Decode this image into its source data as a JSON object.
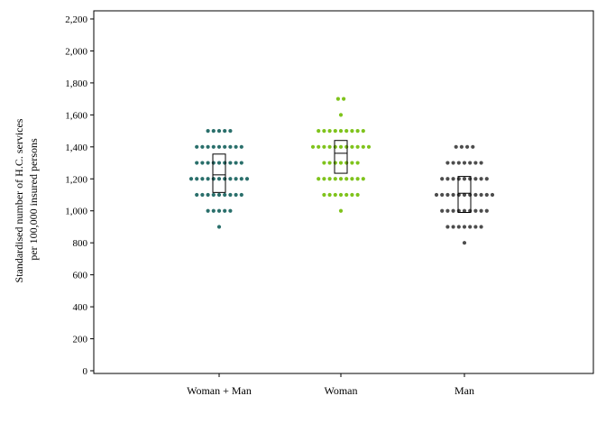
{
  "chart_data": {
    "type": "scatter",
    "subtype": "dot-plot with box",
    "ylabel_lines": [
      "Standardised number of H.C. services",
      "per 100,000 insured persons"
    ],
    "xlabel": "",
    "ylim": [
      0,
      2200
    ],
    "yticks": [
      0,
      200,
      400,
      600,
      800,
      1000,
      1200,
      1400,
      1600,
      1800,
      2000,
      2200
    ],
    "ytick_labels": [
      "0",
      "200",
      "400",
      "600",
      "800",
      "1,000",
      "1,200",
      "1,400",
      "1,600",
      "1,800",
      "2,000",
      "2,200"
    ],
    "grid": false,
    "categories": [
      "Woman + Man",
      "Woman",
      "Man"
    ],
    "series": [
      {
        "category": "Woman + Man",
        "color": "#2a6f6b",
        "box": {
          "q1": 1115,
          "median": 1225,
          "q3": 1355
        },
        "dots": [
          {
            "y": 1500,
            "n": 5
          },
          {
            "y": 1400,
            "n": 9
          },
          {
            "y": 1300,
            "n": 9
          },
          {
            "y": 1200,
            "n": 11
          },
          {
            "y": 1100,
            "n": 9
          },
          {
            "y": 1000,
            "n": 5
          },
          {
            "y": 900,
            "n": 1
          }
        ]
      },
      {
        "category": "Woman",
        "color": "#7fc31c",
        "box": {
          "q1": 1235,
          "median": 1360,
          "q3": 1440
        },
        "dots": [
          {
            "y": 1700,
            "n": 2
          },
          {
            "y": 1600,
            "n": 1
          },
          {
            "y": 1500,
            "n": 9
          },
          {
            "y": 1400,
            "n": 11
          },
          {
            "y": 1300,
            "n": 7
          },
          {
            "y": 1200,
            "n": 9
          },
          {
            "y": 1100,
            "n": 7
          },
          {
            "y": 1000,
            "n": 1
          }
        ]
      },
      {
        "category": "Man",
        "color": "#4d4d4d",
        "box": {
          "q1": 990,
          "median": 1110,
          "q3": 1215
        },
        "dots": [
          {
            "y": 1400,
            "n": 4
          },
          {
            "y": 1300,
            "n": 7
          },
          {
            "y": 1200,
            "n": 9
          },
          {
            "y": 1100,
            "n": 11
          },
          {
            "y": 1000,
            "n": 9
          },
          {
            "y": 900,
            "n": 7
          },
          {
            "y": 800,
            "n": 1
          }
        ]
      }
    ]
  }
}
